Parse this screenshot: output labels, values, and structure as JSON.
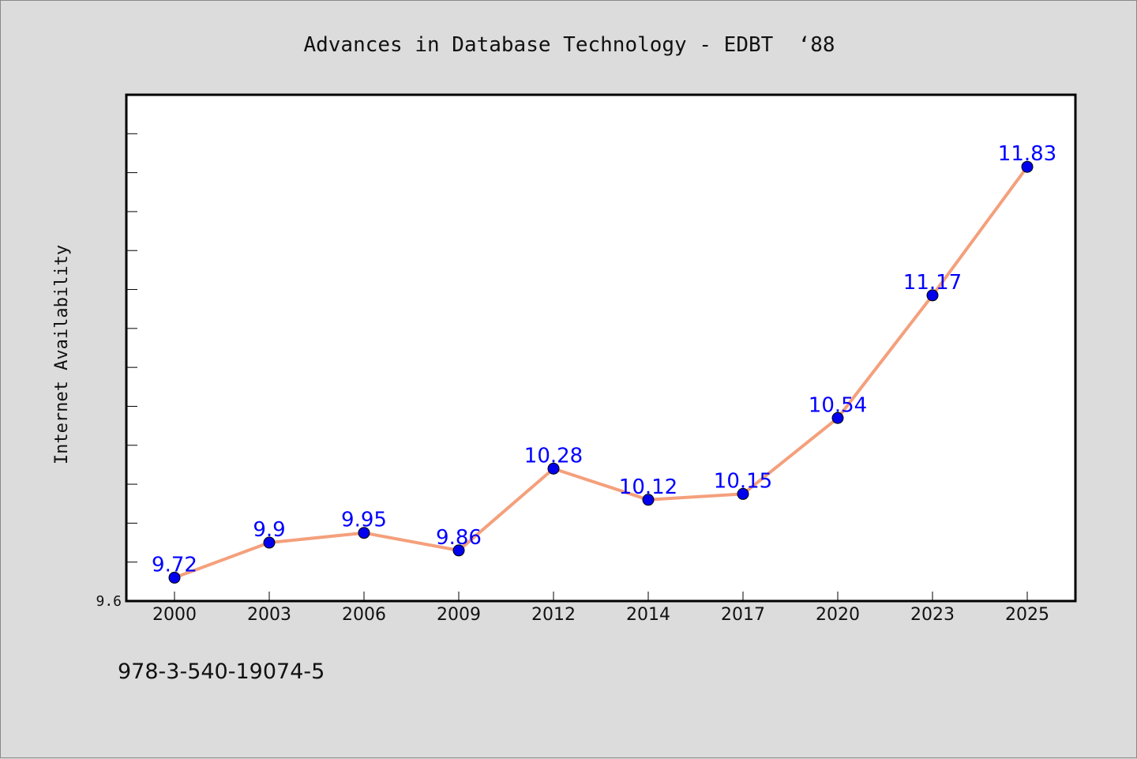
{
  "chart_data": {
    "type": "line",
    "title": "Advances in Database Technology - EDBT  ‘88",
    "xlabel": "",
    "ylabel": "Internet Availability",
    "categories": [
      "2000",
      "2003",
      "2006",
      "2009",
      "2012",
      "2014",
      "2017",
      "2020",
      "2023",
      "2025"
    ],
    "series": [
      {
        "values": [
          9.72,
          9.9,
          9.95,
          9.86,
          10.28,
          10.12,
          10.15,
          10.54,
          11.17,
          11.83
        ],
        "labels": [
          "9.72",
          "9.9",
          "9.95",
          "9.86",
          "10.28",
          "10.12",
          "10.15",
          "10.54",
          "11.17",
          "11.83"
        ],
        "line_color": "#f4a07c",
        "marker_color": "#0000ee"
      }
    ],
    "ylim": [
      9.6,
      12.2
    ],
    "y_tick_labels": [
      "9.6"
    ],
    "grid": false,
    "legend": "none"
  },
  "footer": {
    "isbn": "978-3-540-19074-5"
  },
  "colors": {
    "background": "#dcdcdc",
    "plot_background": "#ffffff",
    "data_label": "#0000ff"
  }
}
